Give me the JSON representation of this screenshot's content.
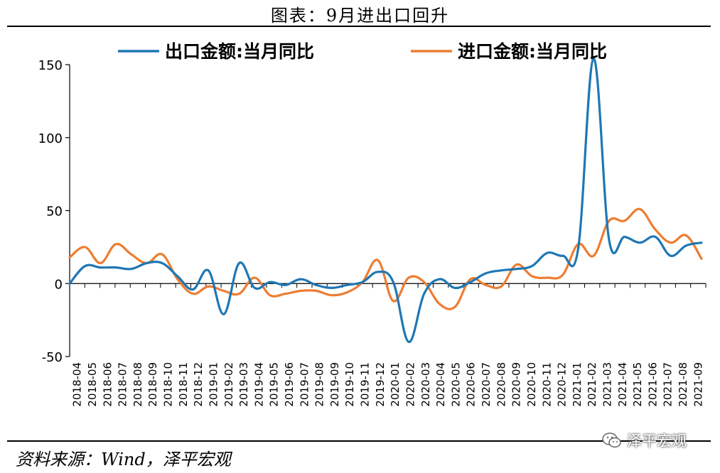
{
  "title": "图表：9月进出口回升",
  "source": "资料来源：Wind，泽平宏观",
  "watermark": "泽平宏观",
  "watermark_icon": "wechat-icon",
  "colors": {
    "export": "#1f77b4",
    "import": "#ed7d31"
  },
  "chart_data": {
    "type": "line",
    "title": "图表：9月进出口回升",
    "xlabel": "",
    "ylabel": "",
    "ylim": [
      -50,
      150
    ],
    "yticks": [
      -50,
      0,
      50,
      100,
      150
    ],
    "grid": false,
    "legend_position": "top",
    "x": [
      "2018-04",
      "2018-05",
      "2018-06",
      "2018-07",
      "2018-08",
      "2018-09",
      "2018-10",
      "2018-11",
      "2018-12",
      "2019-01",
      "2019-02",
      "2019-03",
      "2019-04",
      "2019-05",
      "2019-06",
      "2019-07",
      "2019-08",
      "2019-09",
      "2019-10",
      "2019-11",
      "2019-12",
      "2020-01",
      "2020-02",
      "2020-03",
      "2020-04",
      "2020-05",
      "2020-06",
      "2020-07",
      "2020-08",
      "2020-09",
      "2020-10",
      "2020-11",
      "2020-12",
      "2021-01",
      "2021-02",
      "2021-03",
      "2021-04",
      "2021-05",
      "2021-06",
      "2021-07",
      "2021-08",
      "2021-09"
    ],
    "series": [
      {
        "name": "出口金额:当月同比",
        "values": [
          0,
          12,
          11,
          11,
          10,
          14,
          14,
          5,
          -4,
          9,
          -21,
          14,
          -3,
          1,
          -1,
          3,
          -1,
          -3,
          -1,
          1,
          8,
          1,
          -40,
          -7,
          3,
          -3,
          1,
          7,
          9,
          10,
          12,
          21,
          19,
          24,
          154,
          30,
          32,
          28,
          32,
          19,
          26,
          28
        ]
      },
      {
        "name": "进口金额:当月同比",
        "values": [
          18,
          25,
          14,
          27,
          20,
          14,
          20,
          3,
          -7,
          -2,
          -5,
          -7,
          4,
          -8,
          -7,
          -5,
          -5,
          -8,
          -6,
          1,
          16,
          -12,
          4,
          1,
          -14,
          -16,
          3,
          -1,
          -2,
          13,
          5,
          4,
          6,
          27,
          19,
          43,
          43,
          51,
          37,
          28,
          33,
          17
        ]
      }
    ]
  }
}
